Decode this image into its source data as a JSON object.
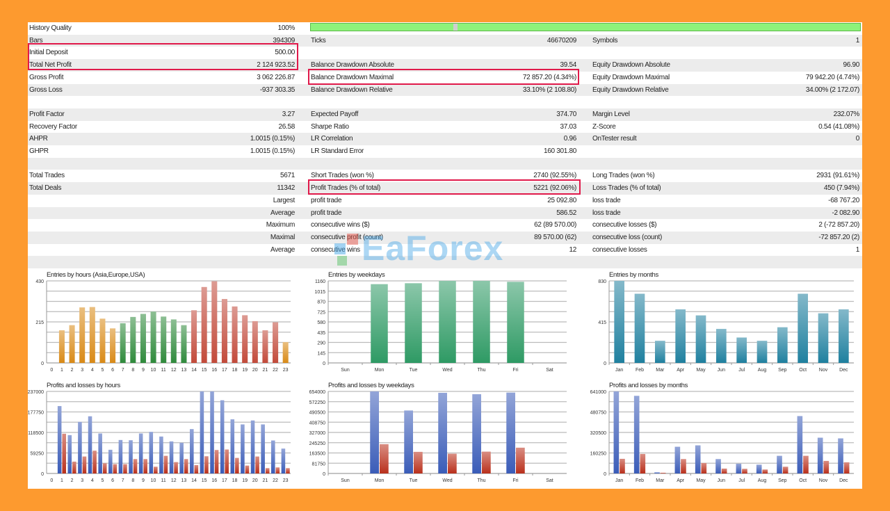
{
  "history_quality_bar": {
    "percent": 100,
    "color": "#8ef27a"
  },
  "stats": {
    "rows": [
      [
        {
          "label": "History Quality",
          "value": "100%"
        },
        {
          "progress": true
        },
        {
          "progress": true
        }
      ],
      [
        {
          "label": "Bars",
          "value": "394309"
        },
        {
          "label": "Ticks",
          "value": "46670209"
        },
        {
          "label": "Symbols",
          "value": "1"
        }
      ],
      [
        {
          "label": "Initial Deposit",
          "value": "500.00"
        },
        {},
        {}
      ],
      [
        {
          "label": "Total Net Profit",
          "value": "2 124 923.52"
        },
        {
          "label": "Balance Drawdown Absolute",
          "value": "39.54"
        },
        {
          "label": "Equity Drawdown Absolute",
          "value": "96.90"
        }
      ],
      [
        {
          "label": "Gross Profit",
          "value": "3 062 226.87"
        },
        {
          "label": "Balance Drawdown Maximal",
          "value": "72 857.20 (4.34%)"
        },
        {
          "label": "Equity Drawdown Maximal",
          "value": "79 942.20 (4.74%)"
        }
      ],
      [
        {
          "label": "Gross Loss",
          "value": "-937 303.35"
        },
        {
          "label": "Balance Drawdown Relative",
          "value": "33.10% (2 108.80)"
        },
        {
          "label": "Equity Drawdown Relative",
          "value": "34.00% (2 172.07)"
        }
      ],
      [
        {},
        {},
        {}
      ],
      [
        {
          "label": "Profit Factor",
          "value": "3.27"
        },
        {
          "label": "Expected Payoff",
          "value": "374.70"
        },
        {
          "label": "Margin Level",
          "value": "232.07%"
        }
      ],
      [
        {
          "label": "Recovery Factor",
          "value": "26.58"
        },
        {
          "label": "Sharpe Ratio",
          "value": "37.03"
        },
        {
          "label": "Z-Score",
          "value": "0.54 (41.08%)"
        }
      ],
      [
        {
          "label": "AHPR",
          "value": "1.0015 (0.15%)"
        },
        {
          "label": "LR Correlation",
          "value": "0.96"
        },
        {
          "label": "OnTester result",
          "value": "0"
        }
      ],
      [
        {
          "label": "GHPR",
          "value": "1.0015 (0.15%)"
        },
        {
          "label": "LR Standard Error",
          "value": "160 301.80"
        },
        {}
      ],
      [
        {},
        {},
        {}
      ],
      [
        {
          "label": "Total Trades",
          "value": "5671"
        },
        {
          "label": "Short Trades (won %)",
          "value": "2740 (92.55%)"
        },
        {
          "label": "Long Trades (won %)",
          "value": "2931 (91.61%)"
        }
      ],
      [
        {
          "label": "Total Deals",
          "value": "11342"
        },
        {
          "label": "Profit Trades (% of total)",
          "value": "5221 (92.06%)"
        },
        {
          "label": "Loss Trades (% of total)",
          "value": "450 (7.94%)"
        }
      ],
      [
        {
          "value": "Largest"
        },
        {
          "label": "profit trade",
          "value": "25 092.80"
        },
        {
          "label": "loss trade",
          "value": "-68 767.20"
        }
      ],
      [
        {
          "value": "Average"
        },
        {
          "label": "profit trade",
          "value": "586.52"
        },
        {
          "label": "loss trade",
          "value": "-2 082.90"
        }
      ],
      [
        {
          "value": "Maximum"
        },
        {
          "label": "consecutive wins ($)",
          "value": "62 (89 570.00)"
        },
        {
          "label": "consecutive losses ($)",
          "value": "2 (-72 857.20)"
        }
      ],
      [
        {
          "value": "Maximal"
        },
        {
          "label": "consecutive profit (count)",
          "value": "89 570.00 (62)"
        },
        {
          "label": "consecutive loss (count)",
          "value": "-72 857.20 (2)"
        }
      ],
      [
        {
          "value": "Average"
        },
        {
          "label": "consecutive wins",
          "value": "12"
        },
        {
          "label": "consecutive losses",
          "value": "1"
        }
      ],
      [
        {},
        {},
        {}
      ]
    ]
  },
  "watermark": "EaForex",
  "colors": {
    "highlight": "#e0194a",
    "background": "#fd9a2f"
  },
  "chart_data": [
    {
      "type": "bar",
      "title": "Entries by hours (Asia,Europe,USA)",
      "categories": [
        "0",
        "1",
        "2",
        "3",
        "4",
        "5",
        "6",
        "7",
        "8",
        "9",
        "10",
        "11",
        "12",
        "13",
        "14",
        "15",
        "16",
        "17",
        "18",
        "19",
        "20",
        "21",
        "22",
        "23"
      ],
      "yticks": [
        "0",
        "215",
        "430"
      ],
      "ylim": [
        0,
        430
      ],
      "grid": true,
      "series": [
        {
          "values": [
            0,
            171,
            198,
            291,
            293,
            232,
            181,
            208,
            241,
            257,
            269,
            243,
            228,
            198,
            276,
            398,
            428,
            335,
            296,
            250,
            219,
            171,
            213,
            109
          ],
          "bar_colors": [
            "#d98a17",
            "#d98a17",
            "#d98a17",
            "#d98a17",
            "#d98a17",
            "#d98a17",
            "#d98a17",
            "#2f8a3c",
            "#2f8a3c",
            "#2f8a3c",
            "#2f8a3c",
            "#2f8a3c",
            "#2f8a3c",
            "#2f8a3c",
            "#c24a3a",
            "#c24a3a",
            "#c24a3a",
            "#c24a3a",
            "#c24a3a",
            "#c24a3a",
            "#c24a3a",
            "#c24a3a",
            "#c24a3a",
            "#d98a17"
          ]
        }
      ]
    },
    {
      "type": "bar",
      "title": "Entries by weekdays",
      "categories": [
        "Sun",
        "Mon",
        "Tue",
        "Wed",
        "Thu",
        "Fri",
        "Sat"
      ],
      "yticks": [
        "0",
        "145",
        "290",
        "435",
        "580",
        "725",
        "870",
        "1015",
        "1160"
      ],
      "ylim": [
        0,
        1160
      ],
      "grid": true,
      "series": [
        {
          "values": [
            0,
            1114,
            1127,
            1160,
            1160,
            1147,
            0
          ],
          "color": "#2e9a64"
        }
      ]
    },
    {
      "type": "bar",
      "title": "Entries by months",
      "categories": [
        "Jan",
        "Feb",
        "Mar",
        "Apr",
        "May",
        "Jun",
        "Jul",
        "Aug",
        "Sep",
        "Oct",
        "Nov",
        "Dec"
      ],
      "yticks": [
        "0",
        "415",
        "830"
      ],
      "ylim": [
        0,
        830
      ],
      "grid": true,
      "series": [
        {
          "values": [
            830,
            700,
            224,
            542,
            481,
            344,
            257,
            224,
            361,
            700,
            502,
            542
          ],
          "color": "#1f809f"
        }
      ]
    },
    {
      "type": "bar",
      "title": "Profits and losses by hours",
      "categories": [
        "0",
        "1",
        "2",
        "3",
        "4",
        "5",
        "6",
        "7",
        "8",
        "9",
        "10",
        "11",
        "12",
        "13",
        "14",
        "15",
        "16",
        "17",
        "18",
        "19",
        "20",
        "21",
        "22",
        "23"
      ],
      "yticks": [
        "0",
        "59250",
        "118500",
        "177750",
        "237000"
      ],
      "ylim": [
        0,
        237000
      ],
      "grid": true,
      "series": [
        {
          "values": [
            0,
            194700,
            110800,
            149000,
            165200,
            115500,
            68500,
            96700,
            96000,
            115500,
            120200,
            106700,
            92600,
            88600,
            128200,
            237000,
            237000,
            211500,
            156400,
            141700,
            153100,
            141700,
            95300,
            71800
          ],
          "color": "#3a5cb8"
        },
        {
          "values": [
            0,
            114800,
            34200,
            49000,
            65800,
            29500,
            26900,
            26900,
            41600,
            41600,
            19500,
            51000,
            32900,
            41600,
            24200,
            49700,
            67800,
            69200,
            45000,
            22800,
            49000,
            15400,
            17500,
            15400
          ],
          "color": "#b9301c"
        }
      ]
    },
    {
      "type": "bar",
      "title": "Profits and losses by weekdays",
      "categories": [
        "Sun",
        "Mon",
        "Tue",
        "Wed",
        "Thu",
        "Fri",
        "Sat"
      ],
      "yticks": [
        "0",
        "81750",
        "163500",
        "245250",
        "327000",
        "408750",
        "490500",
        "572250",
        "654000"
      ],
      "ylim": [
        0,
        654000
      ],
      "grid": true,
      "series": [
        {
          "values": [
            0,
            654000,
            502000,
            642900,
            631800,
            644700,
            0
          ],
          "color": "#3a5cb8"
        },
        {
          "values": [
            0,
            233400,
            172300,
            157500,
            174100,
            205600,
            0
          ],
          "color": "#b9301c"
        }
      ]
    },
    {
      "type": "bar",
      "title": "Profits and losses by months",
      "categories": [
        "Jan",
        "Feb",
        "Mar",
        "Apr",
        "May",
        "Jun",
        "Jul",
        "Aug",
        "Sep",
        "Oct",
        "Nov",
        "Dec"
      ],
      "yticks": [
        "0",
        "160250",
        "320500",
        "480750",
        "641000"
      ],
      "ylim": [
        0,
        641000
      ],
      "grid": true,
      "series": [
        {
          "values": [
            641000,
            606500,
            9100,
            208800,
            219700,
            112600,
            76300,
            69000,
            138000,
            448500,
            279600,
            274200
          ],
          "color": "#3a5cb8"
        },
        {
          "values": [
            114400,
            152500,
            5400,
            112600,
            81700,
            38100,
            36300,
            30900,
            52700,
            138000,
            98100,
            87200
          ],
          "color": "#b9301c"
        }
      ]
    }
  ]
}
